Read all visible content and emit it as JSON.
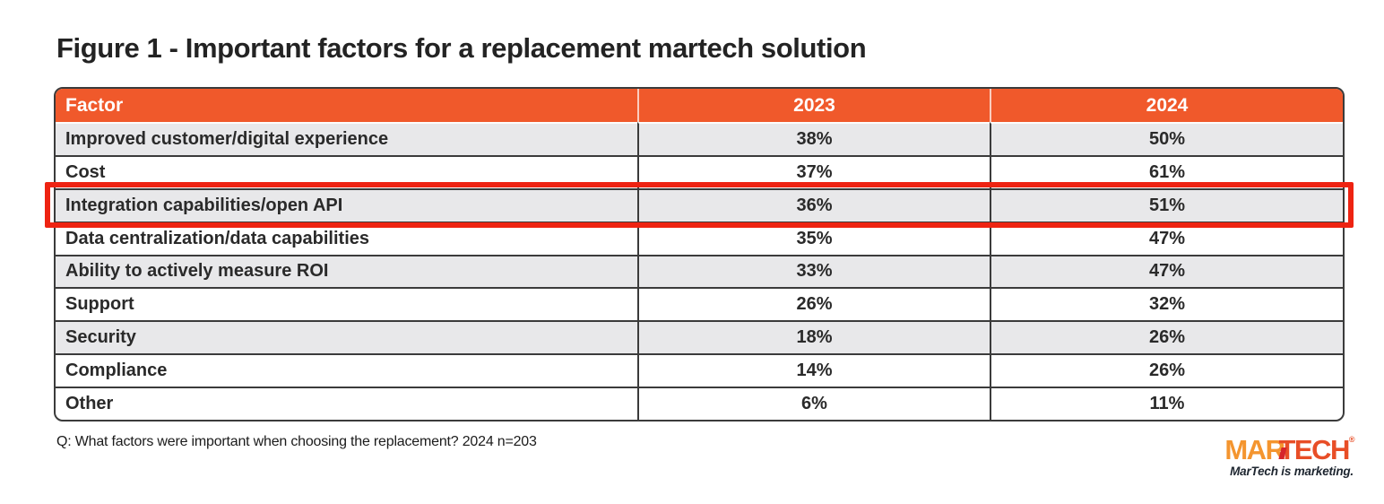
{
  "title": "Figure 1 - Important factors for a replacement martech solution",
  "table": {
    "headers": {
      "factor": "Factor",
      "y2023": "2023",
      "y2024": "2024"
    },
    "rows": [
      {
        "factor": "Improved customer/digital experience",
        "y2023": "38%",
        "y2024": "50%"
      },
      {
        "factor": "Cost",
        "y2023": "37%",
        "y2024": "61%"
      },
      {
        "factor": "Integration capabilities/open API",
        "y2023": "36%",
        "y2024": "51%"
      },
      {
        "factor": "Data centralization/data capabilities",
        "y2023": "35%",
        "y2024": "47%"
      },
      {
        "factor": "Ability to actively measure ROI",
        "y2023": "33%",
        "y2024": "47%"
      },
      {
        "factor": "Support",
        "y2023": "26%",
        "y2024": "32%"
      },
      {
        "factor": "Security",
        "y2023": "18%",
        "y2024": "26%"
      },
      {
        "factor": "Compliance",
        "y2023": "14%",
        "y2024": "26%"
      },
      {
        "factor": "Other",
        "y2023": "6%",
        "y2024": "11%"
      }
    ],
    "highlighted_row": "Integration capabilities/open API"
  },
  "footnote": "Q: What factors were important when choosing the replacement? 2024 n=203",
  "logo": {
    "wordmark_mar": "MAR",
    "wordmark_tech": "TECH",
    "trademark": "®",
    "tagline": "MarTech is marketing."
  },
  "colors": {
    "header_orange": "#F0592B",
    "row_gray": "#E8E8EA",
    "table_border": "#3B3B3B",
    "highlight_red": "#EE2312",
    "logo_orange_light": "#F4952F",
    "logo_orange_dark": "#E84E27"
  },
  "chart_data": {
    "type": "table",
    "title": "Figure 1 - Important factors for a replacement martech solution",
    "categories": [
      "Improved customer/digital experience",
      "Cost",
      "Integration capabilities/open API",
      "Data centralization/data capabilities",
      "Ability to actively measure ROI",
      "Support",
      "Security",
      "Compliance",
      "Other"
    ],
    "series": [
      {
        "name": "2023",
        "values": [
          38,
          37,
          36,
          35,
          33,
          26,
          18,
          14,
          6
        ]
      },
      {
        "name": "2024",
        "values": [
          50,
          61,
          51,
          47,
          47,
          32,
          26,
          26,
          11
        ]
      }
    ],
    "unit": "%",
    "highlighted_row": "Integration capabilities/open API",
    "note": "Q: What factors were important when choosing the replacement? 2024 n=203"
  }
}
